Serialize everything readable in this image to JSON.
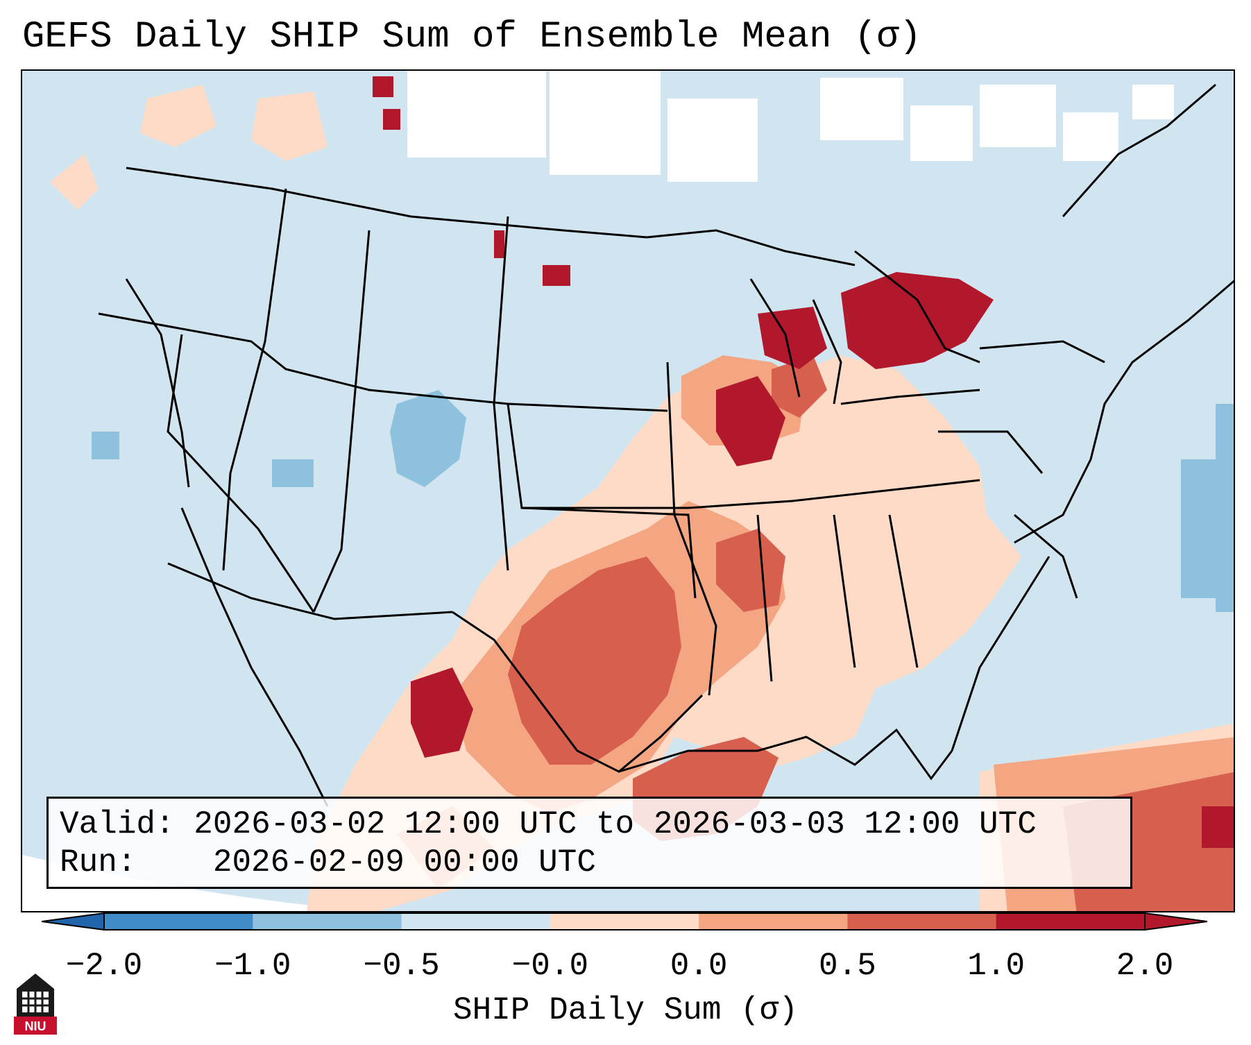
{
  "title": "GEFS Daily SHIP Sum of Ensemble Mean (σ)",
  "info": {
    "valid_label": "Valid:",
    "valid_value": "2026-03-02 12:00 UTC to 2026-03-03 12:00 UTC",
    "run_label": "Run:",
    "run_value": "2026-02-09 00:00 UTC"
  },
  "colorbar": {
    "label": "SHIP Daily Sum (σ)",
    "ticks": [
      "−2.0",
      "−1.0",
      "−0.5",
      "−0.0",
      "0.0",
      "0.5",
      "1.0",
      "2.0"
    ],
    "colors": [
      "#3f8cc8",
      "#8ec1de",
      "#d1e5f0",
      "#f7f7f7",
      "#fddbc7",
      "#f4a582",
      "#d6604d",
      "#b2182b"
    ],
    "extend_low_color": "#2166ac",
    "extend_high_color": "#b2182b"
  },
  "map": {
    "ocean_color": "#d1e5f0",
    "regions": [
      {
        "name": "Northern Plains / Great Lakes maximum",
        "category": "above 2.0"
      },
      {
        "name": "Texas / Oklahoma / Gulf Coast",
        "category": "1.0 to 2.0"
      },
      {
        "name": "Colorado minimum",
        "category": "-1.0 to -0.5"
      }
    ]
  },
  "logo": {
    "text": "NIU"
  }
}
